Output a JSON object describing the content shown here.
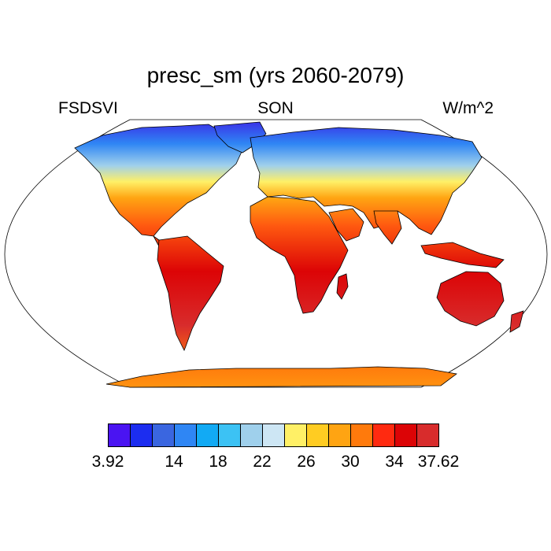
{
  "title": "presc_sm (yrs 2060-2079)",
  "left_label": "FSDSVI",
  "center_label": "SON",
  "right_label": "W/m^2",
  "colorbar": {
    "colors": [
      "#4a14f2",
      "#1c2df0",
      "#3a66e0",
      "#2f86f4",
      "#12aaf4",
      "#3cc2f4",
      "#9fd0ec",
      "#cde6f4",
      "#fff066",
      "#ffcc22",
      "#ffa412",
      "#ff7a0c",
      "#ff2a10",
      "#dc0406",
      "#d82c2c"
    ],
    "labels": [
      "3.92",
      "14",
      "18",
      "22",
      "26",
      "30",
      "34",
      "37.62"
    ]
  },
  "map_colors": {
    "ocean": "#ffffff",
    "coast": "#000000",
    "polar": "#3a33e8",
    "temperate": "#9fd0ec",
    "subtropic": "#ffa412",
    "tropic": "#dc0406",
    "antarctica": "#ff7a0c"
  }
}
